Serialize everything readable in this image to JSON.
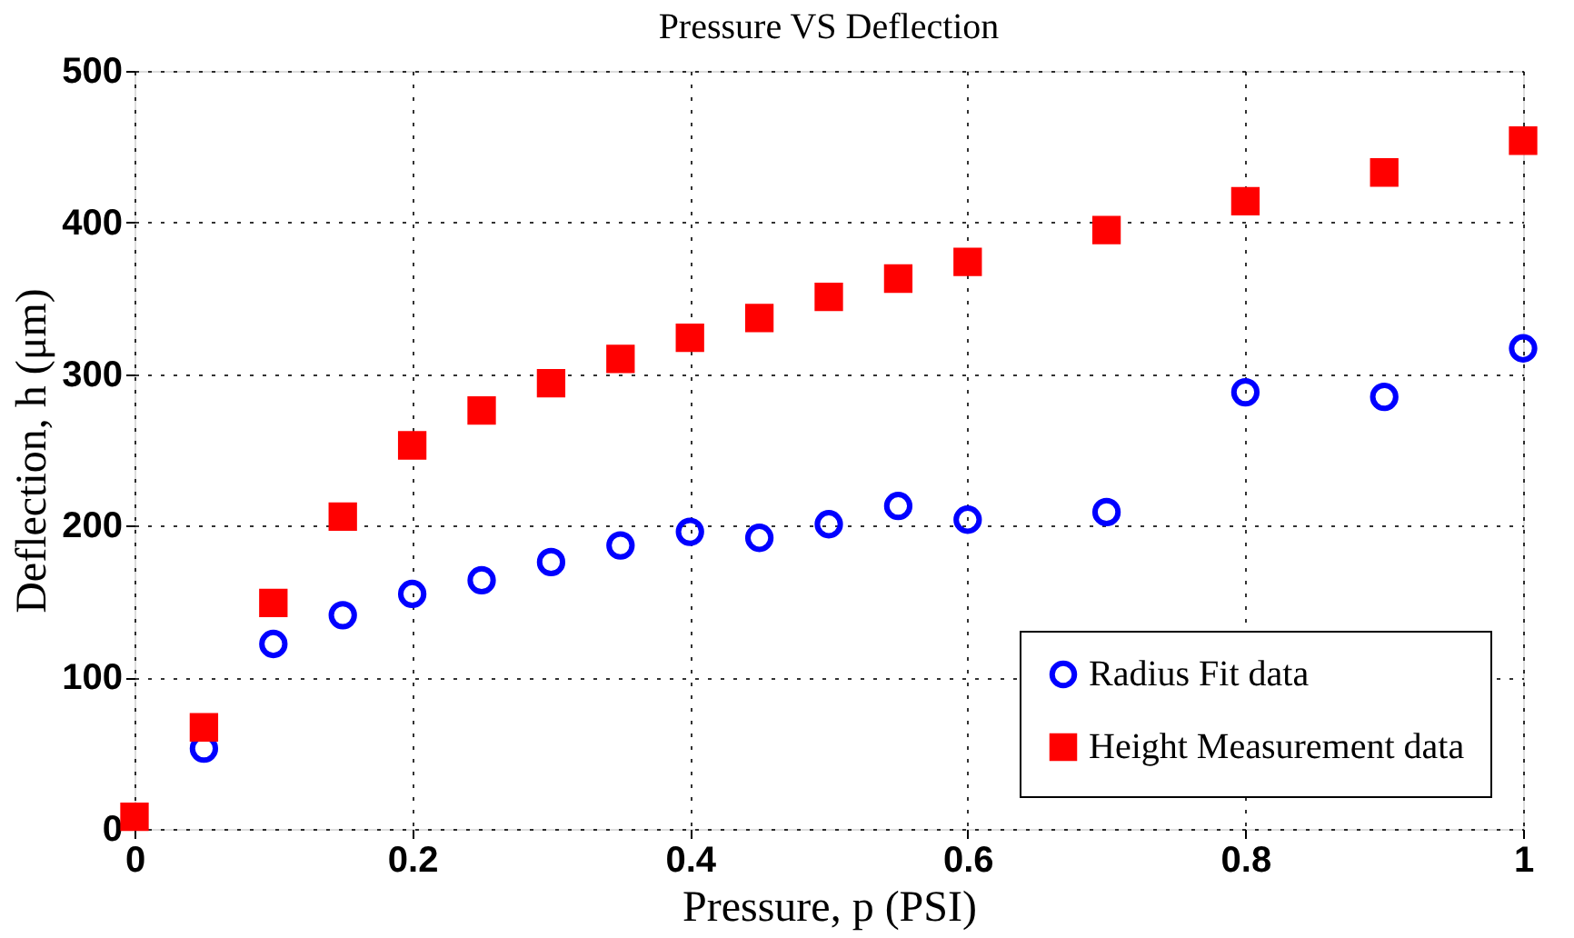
{
  "chart_data": {
    "type": "scatter",
    "title": "Pressure VS Deflection",
    "xlabel": "Pressure, p (PSI)",
    "ylabel": "Deflection, h (μm)",
    "x": [
      0,
      0.05,
      0.1,
      0.15,
      0.2,
      0.25,
      0.3,
      0.35,
      0.4,
      0.45,
      0.5,
      0.55,
      0.6,
      0.7,
      0.8,
      0.9,
      1.0
    ],
    "series": [
      {
        "name": "Radius Fit data",
        "color": "#0000ff",
        "marker": "circle",
        "values": [
          null,
          53,
          122,
          141,
          155,
          164,
          176,
          187,
          196,
          192,
          201,
          213,
          204,
          209,
          288,
          285,
          317
        ]
      },
      {
        "name": "Height Measurement data",
        "color": "#ff0000",
        "marker": "square",
        "values": [
          8,
          67,
          149,
          206,
          253,
          276,
          294,
          310,
          324,
          337,
          351,
          363,
          374,
          395,
          414,
          433,
          454
        ]
      }
    ],
    "xlim": [
      0,
      1
    ],
    "xticks": [
      0,
      0.2,
      0.4,
      0.6,
      0.8,
      1
    ],
    "ylim": [
      0,
      500
    ],
    "yticks": [
      0,
      100,
      200,
      300,
      400,
      500
    ],
    "grid": true,
    "legend": "bottom right"
  }
}
